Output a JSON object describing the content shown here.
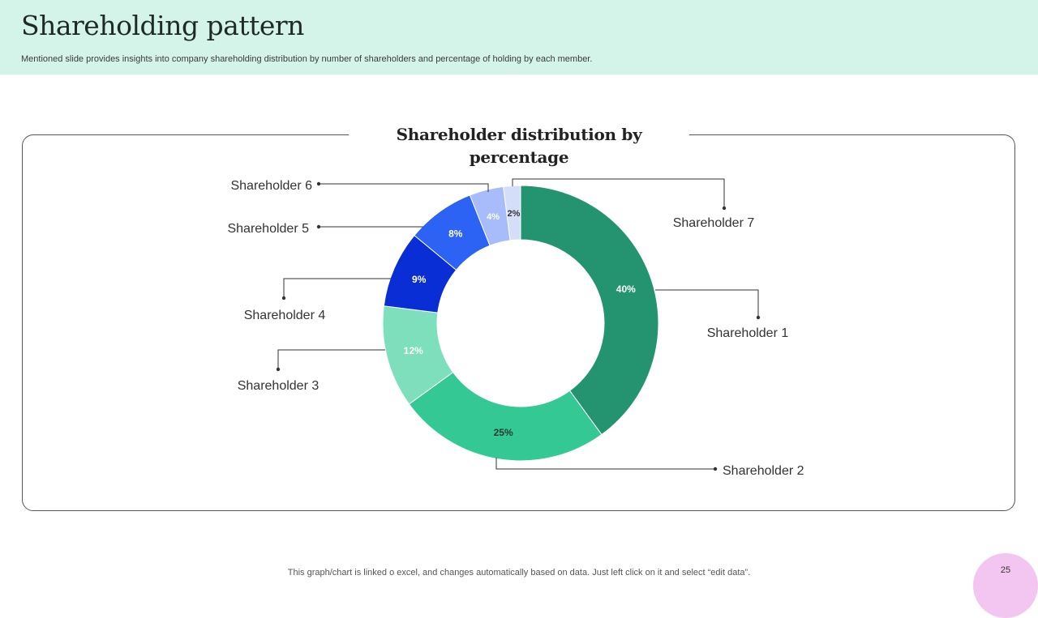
{
  "header": {
    "title": "Shareholding pattern",
    "subtitle": "Mentioned slide provides insights into company shareholding distribution by number of shareholders and percentage of holding by each member."
  },
  "chart_data": {
    "type": "pie",
    "variant": "donut",
    "title": "Shareholder distribution by percentage",
    "categories": [
      "Shareholder 1",
      "Shareholder 2",
      "Shareholder 3",
      "Shareholder 4",
      "Shareholder 5",
      "Shareholder 6",
      "Shareholder 7"
    ],
    "values": [
      40,
      25,
      12,
      9,
      8,
      4,
      2
    ],
    "data_labels": [
      "40%",
      "25%",
      "12%",
      "9%",
      "8%",
      "4%",
      "2%"
    ],
    "colors": [
      "#249470",
      "#34c994",
      "#7ddfbb",
      "#0a2ed6",
      "#2d63f5",
      "#a8bbfb",
      "#d5def9"
    ]
  },
  "footer": {
    "note": "This graph/chart is linked o excel, and changes automatically based on data. Just left click on it and select “edit data”.",
    "page_number": "25"
  }
}
